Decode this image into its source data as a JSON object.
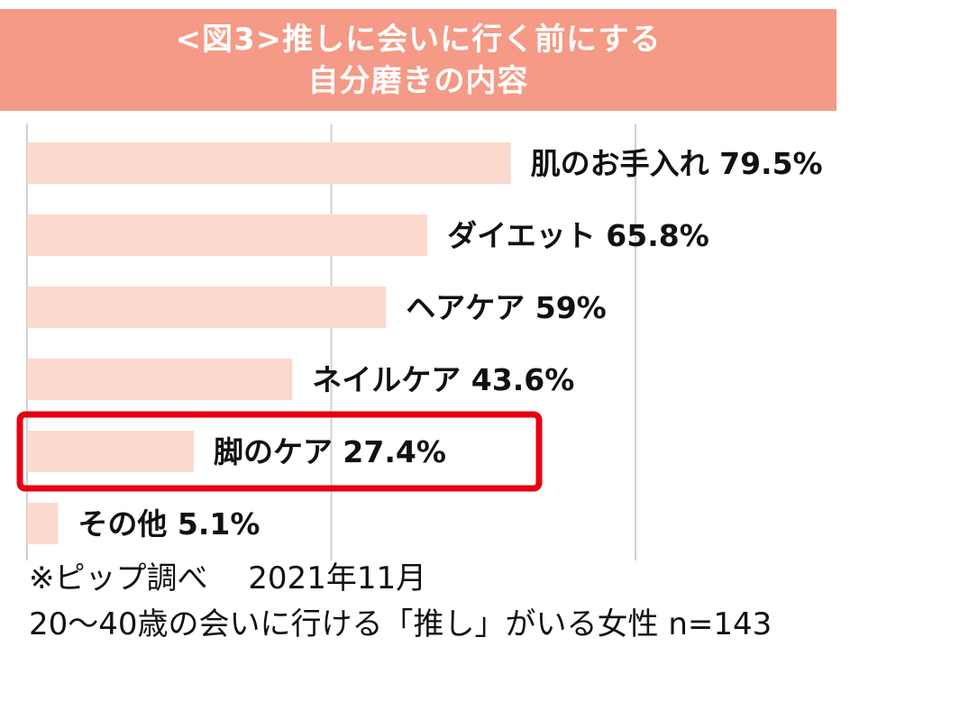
{
  "title": {
    "line1": "<図3>推しに会いに行く前にする",
    "line2": "自分磨きの内容"
  },
  "chart_data": {
    "type": "bar",
    "orientation": "horizontal",
    "categories": [
      "肌のお手入れ",
      "ダイエット",
      "ヘアケア",
      "ネイルケア",
      "脚のケア",
      "その他"
    ],
    "values": [
      79.5,
      65.8,
      59,
      43.6,
      27.4,
      5.1
    ],
    "value_labels": [
      "79.5%",
      "65.8%",
      "59%",
      "43.6%",
      "27.4%",
      "5.1%"
    ],
    "unit": "%",
    "highlighted_category": "脚のケア",
    "bar_color": "#fcd9cd",
    "highlight_color": "#e60012",
    "grid": true,
    "xlim": [
      0,
      100
    ]
  },
  "notes": {
    "source": "※ピップ調べ　 2021年11月",
    "sample": "20～40歳の会いに行ける「推し」がいる女性 n=143"
  }
}
